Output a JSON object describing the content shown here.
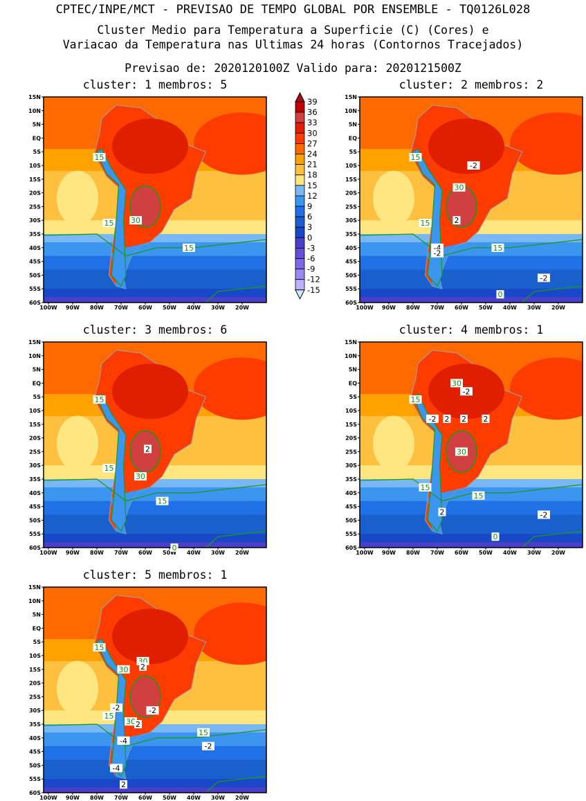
{
  "header": {
    "line1": "CPTEC/INPE/MCT - PREVISAO DE TEMPO GLOBAL POR ENSEMBLE - TQ0126L028",
    "line2": "Cluster Medio para Temperatura a Superficie (C) (Cores) e",
    "line3": "Variacao da Temperatura nas Ultimas 24 horas (Contornos Tracejados)",
    "line4": "Previsao de: 2020120100Z   Valido para: 2020121500Z"
  },
  "axes": {
    "lat_labels": [
      "15N",
      "10N",
      "5N",
      "EQ",
      "5S",
      "10S",
      "15S",
      "20S",
      "25S",
      "30S",
      "35S",
      "40S",
      "45S",
      "50S",
      "55S",
      "60S"
    ],
    "lon_labels": [
      "100W",
      "90W",
      "80W",
      "70W",
      "60W",
      "50W",
      "40W",
      "30W",
      "20W"
    ]
  },
  "colorbar": {
    "levels": [
      "39",
      "36",
      "33",
      "30",
      "27",
      "24",
      "21",
      "18",
      "15",
      "12",
      "9",
      "6",
      "3",
      "0",
      "-3",
      "-6",
      "-9",
      "-12",
      "-15"
    ],
    "colors": [
      "#a01010",
      "#c00000",
      "#d04040",
      "#e01e00",
      "#ff3c00",
      "#ff6a00",
      "#ffa200",
      "#ffc040",
      "#ffe680",
      "#7ab8f5",
      "#3c96f0",
      "#2070e6",
      "#1a60cc",
      "#1848c8",
      "#4a40c8",
      "#6450d0",
      "#7c6ae6",
      "#9a88f5",
      "#bcb0fa",
      "#d2e8fa"
    ]
  },
  "panels": [
    {
      "title": "cluster: 1   membros: 5",
      "labels": [
        {
          "t": "15",
          "lon": -79,
          "lat": -7,
          "c": "g"
        },
        {
          "t": "15",
          "lon": -75,
          "lat": -31,
          "c": "g"
        },
        {
          "t": "30",
          "lon": -64,
          "lat": -30,
          "c": "g"
        },
        {
          "t": "15",
          "lon": -42,
          "lat": -40,
          "c": "g"
        }
      ]
    },
    {
      "title": "cluster: 2   membros: 2",
      "labels": [
        {
          "t": "15",
          "lon": -79,
          "lat": -7,
          "c": "g"
        },
        {
          "t": "-2",
          "lon": -55,
          "lat": -10,
          "c": "w"
        },
        {
          "t": "30",
          "lon": -61,
          "lat": -18,
          "c": "g"
        },
        {
          "t": "2",
          "lon": -62,
          "lat": -30,
          "c": "w"
        },
        {
          "t": "15",
          "lon": -75,
          "lat": -31,
          "c": "g"
        },
        {
          "t": "-4",
          "lon": -70,
          "lat": -40,
          "c": "w"
        },
        {
          "t": "-2",
          "lon": -70,
          "lat": -42,
          "c": "w"
        },
        {
          "t": "15",
          "lon": -45,
          "lat": -40,
          "c": "g"
        },
        {
          "t": "-2",
          "lon": -26,
          "lat": -51,
          "c": "w"
        },
        {
          "t": "0",
          "lon": -44,
          "lat": -57,
          "c": "g"
        }
      ]
    },
    {
      "title": "cluster: 3   membros: 6",
      "labels": [
        {
          "t": "15",
          "lon": -79,
          "lat": -6,
          "c": "g"
        },
        {
          "t": "2",
          "lon": -59,
          "lat": -24,
          "c": "w"
        },
        {
          "t": "15",
          "lon": -75,
          "lat": -31,
          "c": "g"
        },
        {
          "t": "30",
          "lon": -62,
          "lat": -34,
          "c": "g"
        },
        {
          "t": "15",
          "lon": -53,
          "lat": -43,
          "c": "g"
        },
        {
          "t": "0",
          "lon": -48,
          "lat": -60,
          "c": "g"
        }
      ]
    },
    {
      "title": "cluster: 4   membros: 1",
      "labels": [
        {
          "t": "30",
          "lon": -62,
          "lat": 0,
          "c": "g"
        },
        {
          "t": "-2",
          "lon": -58,
          "lat": -3,
          "c": "w"
        },
        {
          "t": "15",
          "lon": -79,
          "lat": -6,
          "c": "g"
        },
        {
          "t": "-2",
          "lon": -72,
          "lat": -13,
          "c": "w"
        },
        {
          "t": "2",
          "lon": -66,
          "lat": -13,
          "c": "w"
        },
        {
          "t": "2",
          "lon": -59,
          "lat": -13,
          "c": "w"
        },
        {
          "t": "2",
          "lon": -50,
          "lat": -13,
          "c": "w"
        },
        {
          "t": "30",
          "lon": -60,
          "lat": -25,
          "c": "g"
        },
        {
          "t": "15",
          "lon": -75,
          "lat": -38,
          "c": "g"
        },
        {
          "t": "15",
          "lon": -53,
          "lat": -41,
          "c": "g"
        },
        {
          "t": "2",
          "lon": -68,
          "lat": -47,
          "c": "w"
        },
        {
          "t": "-2",
          "lon": -26,
          "lat": -48,
          "c": "w"
        },
        {
          "t": "0",
          "lon": -46,
          "lat": -56,
          "c": "g"
        }
      ]
    },
    {
      "title": "cluster: 5   membros: 1",
      "labels": [
        {
          "t": "15",
          "lon": -79,
          "lat": -7,
          "c": "g"
        },
        {
          "t": "30",
          "lon": -61,
          "lat": -12,
          "c": "g"
        },
        {
          "t": "2",
          "lon": -61,
          "lat": -14,
          "c": "w"
        },
        {
          "t": "30",
          "lon": -69,
          "lat": -15,
          "c": "g"
        },
        {
          "t": "-2",
          "lon": -72,
          "lat": -29,
          "c": "w"
        },
        {
          "t": "-2",
          "lon": -57,
          "lat": -30,
          "c": "w"
        },
        {
          "t": "15",
          "lon": -75,
          "lat": -32,
          "c": "g"
        },
        {
          "t": "30",
          "lon": -66,
          "lat": -34,
          "c": "g"
        },
        {
          "t": "2",
          "lon": -63,
          "lat": -35,
          "c": "w"
        },
        {
          "t": "15",
          "lon": -36,
          "lat": -38,
          "c": "g"
        },
        {
          "t": "-4",
          "lon": -69,
          "lat": -41,
          "c": "w"
        },
        {
          "t": "-2",
          "lon": -34,
          "lat": -43,
          "c": "w"
        },
        {
          "t": "-4",
          "lon": -72,
          "lat": -51,
          "c": "w"
        },
        {
          "t": "2",
          "lon": -69,
          "lat": -57,
          "c": "w"
        }
      ]
    }
  ]
}
